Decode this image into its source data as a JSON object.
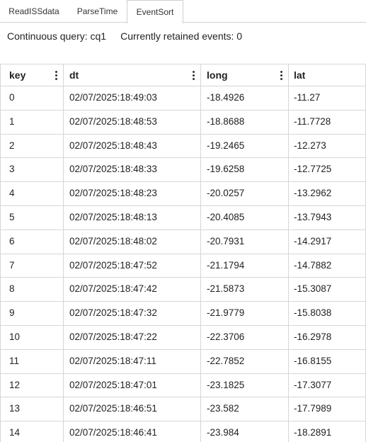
{
  "tabs": [
    {
      "label": "ReadISSdata",
      "active": false
    },
    {
      "label": "ParseTime",
      "active": false
    },
    {
      "label": "EventSort",
      "active": true
    }
  ],
  "info": {
    "query": "Continuous query: cq1",
    "retained": "Currently retained events: 0"
  },
  "table": {
    "columns": [
      "key",
      "dt",
      "long",
      "lat"
    ],
    "rows": [
      [
        "0",
        "02/07/2025:18:49:03",
        "-18.4926",
        "-11.27"
      ],
      [
        "1",
        "02/07/2025:18:48:53",
        "-18.8688",
        "-11.7728"
      ],
      [
        "2",
        "02/07/2025:18:48:43",
        "-19.2465",
        "-12.273"
      ],
      [
        "3",
        "02/07/2025:18:48:33",
        "-19.6258",
        "-12.7725"
      ],
      [
        "4",
        "02/07/2025:18:48:23",
        "-20.0257",
        "-13.2962"
      ],
      [
        "5",
        "02/07/2025:18:48:13",
        "-20.4085",
        "-13.7943"
      ],
      [
        "6",
        "02/07/2025:18:48:02",
        "-20.7931",
        "-14.2917"
      ],
      [
        "7",
        "02/07/2025:18:47:52",
        "-21.1794",
        "-14.7882"
      ],
      [
        "8",
        "02/07/2025:18:47:42",
        "-21.5873",
        "-15.3087"
      ],
      [
        "9",
        "02/07/2025:18:47:32",
        "-21.9779",
        "-15.8038"
      ],
      [
        "10",
        "02/07/2025:18:47:22",
        "-22.3706",
        "-16.2978"
      ],
      [
        "11",
        "02/07/2025:18:47:11",
        "-22.7852",
        "-16.8155"
      ],
      [
        "12",
        "02/07/2025:18:47:01",
        "-23.1825",
        "-17.3077"
      ],
      [
        "13",
        "02/07/2025:18:46:51",
        "-23.582",
        "-17.7989"
      ],
      [
        "14",
        "02/07/2025:18:46:41",
        "-23.984",
        "-18.2891"
      ]
    ]
  },
  "icons": {
    "column_menu": "kebab-menu-icon"
  }
}
